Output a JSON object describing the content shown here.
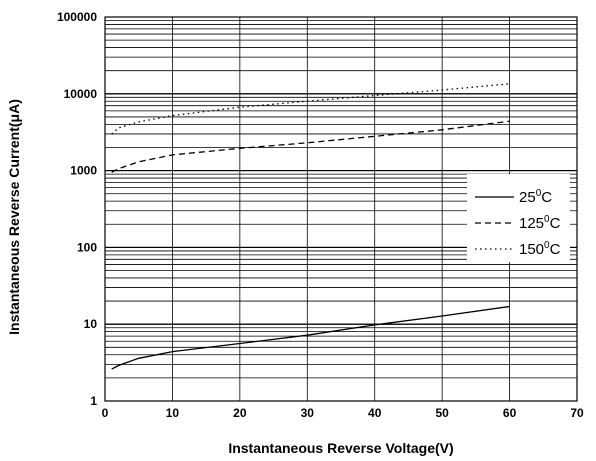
{
  "chart_data": {
    "type": "line",
    "title": "",
    "xlabel": "Instantaneous Reverse Voltage(V)",
    "ylabel": "Instantaneous Reverse Current(μA)",
    "x_scale": "linear",
    "y_scale": "log",
    "xlim": [
      0,
      70
    ],
    "ylim": [
      1,
      100000
    ],
    "x_ticks": [
      "0",
      "10",
      "20",
      "30",
      "40",
      "50",
      "60",
      "70"
    ],
    "y_ticks": [
      "1",
      "10",
      "100",
      "1000",
      "10000",
      "100000"
    ],
    "grid": true,
    "legend_position": "right",
    "series": [
      {
        "name": "25°C",
        "label_base": "25",
        "label_sup": "0",
        "label_unit": "C",
        "style": "solid",
        "x": [
          1,
          2,
          5,
          10,
          20,
          30,
          40,
          50,
          60
        ],
        "y": [
          2.6,
          2.9,
          3.6,
          4.4,
          5.6,
          7.2,
          9.8,
          12.8,
          17
        ]
      },
      {
        "name": "125°C",
        "label_base": "125",
        "label_sup": "0",
        "label_unit": "C",
        "style": "dashed",
        "x": [
          1,
          2,
          5,
          10,
          20,
          30,
          40,
          50,
          60
        ],
        "y": [
          950,
          1060,
          1300,
          1600,
          1950,
          2300,
          2800,
          3400,
          4400
        ]
      },
      {
        "name": "150°C",
        "label_base": "150",
        "label_sup": "0",
        "label_unit": "C",
        "style": "dotted",
        "x": [
          1,
          2,
          5,
          10,
          20,
          30,
          40,
          50,
          60
        ],
        "y": [
          3000,
          3600,
          4300,
          5200,
          6700,
          8000,
          9500,
          11200,
          13500
        ]
      }
    ]
  }
}
